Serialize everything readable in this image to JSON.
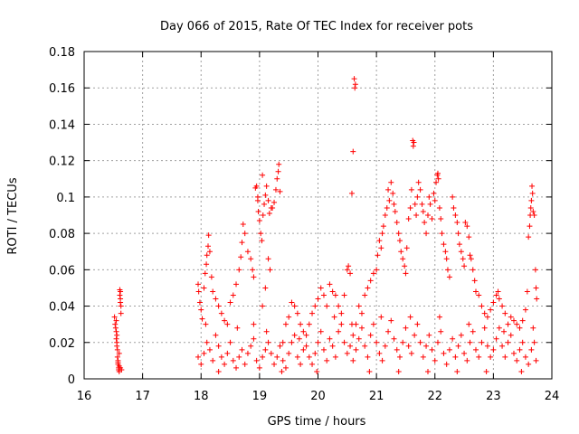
{
  "chart_data": {
    "type": "scatter",
    "title": "Day 066 of 2015, Rate Of TEC Index for receiver pots",
    "xlabel": "GPS time / hours",
    "ylabel": "ROTI / TECUs",
    "xlim": [
      16,
      24
    ],
    "ylim": [
      0,
      0.18
    ],
    "xticks": [
      "16",
      "17",
      "18",
      "19",
      "20",
      "21",
      "22",
      "23",
      "24"
    ],
    "yticks": [
      "0",
      "0.02",
      "0.04",
      "0.06",
      "0.08",
      "0.1",
      "0.12",
      "0.14",
      "0.16",
      "0.18"
    ],
    "grid": true,
    "marker": "+",
    "series_color": "#ff0000",
    "points": [
      [
        16.52,
        0.034
      ],
      [
        16.53,
        0.03
      ],
      [
        16.54,
        0.028
      ],
      [
        16.55,
        0.026
      ],
      [
        16.55,
        0.022
      ],
      [
        16.56,
        0.02
      ],
      [
        16.56,
        0.018
      ],
      [
        16.57,
        0.016
      ],
      [
        16.57,
        0.012
      ],
      [
        16.58,
        0.01
      ],
      [
        16.58,
        0.008
      ],
      [
        16.59,
        0.006
      ],
      [
        16.59,
        0.005
      ],
      [
        16.6,
        0.004
      ],
      [
        16.6,
        0.014
      ],
      [
        16.61,
        0.049
      ],
      [
        16.61,
        0.046
      ],
      [
        16.62,
        0.044
      ],
      [
        16.62,
        0.042
      ],
      [
        16.63,
        0.04
      ],
      [
        16.63,
        0.036
      ],
      [
        16.55,
        0.032
      ],
      [
        16.56,
        0.024
      ],
      [
        16.58,
        0.009
      ],
      [
        16.6,
        0.007
      ],
      [
        16.62,
        0.006
      ],
      [
        16.64,
        0.005
      ],
      [
        16.62,
        0.048
      ],
      [
        17.95,
        0.052
      ],
      [
        17.96,
        0.048
      ],
      [
        17.98,
        0.042
      ],
      [
        18.0,
        0.038
      ],
      [
        18.02,
        0.033
      ],
      [
        18.05,
        0.05
      ],
      [
        18.07,
        0.058
      ],
      [
        18.09,
        0.063
      ],
      [
        18.1,
        0.068
      ],
      [
        18.12,
        0.073
      ],
      [
        18.13,
        0.079
      ],
      [
        18.15,
        0.07
      ],
      [
        18.18,
        0.056
      ],
      [
        18.2,
        0.048
      ],
      [
        18.25,
        0.044
      ],
      [
        18.3,
        0.04
      ],
      [
        18.35,
        0.036
      ],
      [
        18.4,
        0.032
      ],
      [
        18.45,
        0.03
      ],
      [
        18.5,
        0.042
      ],
      [
        18.55,
        0.046
      ],
      [
        18.6,
        0.052
      ],
      [
        18.65,
        0.06
      ],
      [
        18.68,
        0.067
      ],
      [
        18.7,
        0.075
      ],
      [
        18.72,
        0.085
      ],
      [
        18.75,
        0.08
      ],
      [
        18.8,
        0.07
      ],
      [
        18.85,
        0.066
      ],
      [
        18.88,
        0.06
      ],
      [
        18.9,
        0.056
      ],
      [
        18.93,
        0.105
      ],
      [
        18.95,
        0.106
      ],
      [
        18.97,
        0.1
      ],
      [
        18.98,
        0.092
      ],
      [
        19.0,
        0.087
      ],
      [
        19.02,
        0.08
      ],
      [
        19.04,
        0.076
      ],
      [
        19.06,
        0.09
      ],
      [
        19.08,
        0.096
      ],
      [
        19.1,
        0.101
      ],
      [
        19.12,
        0.106
      ],
      [
        19.15,
        0.098
      ],
      [
        19.17,
        0.091
      ],
      [
        19.2,
        0.094
      ],
      [
        19.25,
        0.097
      ],
      [
        19.28,
        0.104
      ],
      [
        19.3,
        0.11
      ],
      [
        19.32,
        0.114
      ],
      [
        19.33,
        0.118
      ],
      [
        19.35,
        0.103
      ],
      [
        19.05,
        0.112
      ],
      [
        18.97,
        0.098
      ],
      [
        19.22,
        0.094
      ],
      [
        19.18,
        0.06
      ],
      [
        19.15,
        0.066
      ],
      [
        19.1,
        0.05
      ],
      [
        19.05,
        0.04
      ],
      [
        19.4,
        0.02
      ],
      [
        19.45,
        0.03
      ],
      [
        19.5,
        0.034
      ],
      [
        19.55,
        0.042
      ],
      [
        19.6,
        0.04
      ],
      [
        19.65,
        0.036
      ],
      [
        19.7,
        0.03
      ],
      [
        19.75,
        0.026
      ],
      [
        19.8,
        0.024
      ],
      [
        19.85,
        0.03
      ],
      [
        19.9,
        0.036
      ],
      [
        19.95,
        0.04
      ],
      [
        20.0,
        0.044
      ],
      [
        20.05,
        0.05
      ],
      [
        20.1,
        0.046
      ],
      [
        20.15,
        0.04
      ],
      [
        20.2,
        0.052
      ],
      [
        20.25,
        0.048
      ],
      [
        20.3,
        0.046
      ],
      [
        20.35,
        0.04
      ],
      [
        20.4,
        0.036
      ],
      [
        20.45,
        0.046
      ],
      [
        20.5,
        0.06
      ],
      [
        20.52,
        0.062
      ],
      [
        20.55,
        0.058
      ],
      [
        20.58,
        0.102
      ],
      [
        20.6,
        0.125
      ],
      [
        20.62,
        0.165
      ],
      [
        20.63,
        0.16
      ],
      [
        20.64,
        0.162
      ],
      [
        20.6,
        0.024
      ],
      [
        20.65,
        0.03
      ],
      [
        20.7,
        0.04
      ],
      [
        20.75,
        0.036
      ],
      [
        20.8,
        0.046
      ],
      [
        20.85,
        0.05
      ],
      [
        20.9,
        0.054
      ],
      [
        20.95,
        0.058
      ],
      [
        21.0,
        0.06
      ],
      [
        21.02,
        0.068
      ],
      [
        21.05,
        0.076
      ],
      [
        21.08,
        0.072
      ],
      [
        21.1,
        0.08
      ],
      [
        21.12,
        0.084
      ],
      [
        21.15,
        0.09
      ],
      [
        21.18,
        0.094
      ],
      [
        21.2,
        0.104
      ],
      [
        21.22,
        0.098
      ],
      [
        21.25,
        0.108
      ],
      [
        21.28,
        0.102
      ],
      [
        21.3,
        0.096
      ],
      [
        21.32,
        0.092
      ],
      [
        21.35,
        0.086
      ],
      [
        21.38,
        0.08
      ],
      [
        21.4,
        0.076
      ],
      [
        21.42,
        0.07
      ],
      [
        21.45,
        0.066
      ],
      [
        21.48,
        0.062
      ],
      [
        21.5,
        0.058
      ],
      [
        21.52,
        0.072
      ],
      [
        21.55,
        0.088
      ],
      [
        21.58,
        0.094
      ],
      [
        21.6,
        0.104
      ],
      [
        21.62,
        0.131
      ],
      [
        21.63,
        0.128
      ],
      [
        21.64,
        0.13
      ],
      [
        21.66,
        0.096
      ],
      [
        21.68,
        0.09
      ],
      [
        21.7,
        0.1
      ],
      [
        21.72,
        0.108
      ],
      [
        21.75,
        0.104
      ],
      [
        21.78,
        0.096
      ],
      [
        21.8,
        0.092
      ],
      [
        21.82,
        0.086
      ],
      [
        21.85,
        0.08
      ],
      [
        21.88,
        0.09
      ],
      [
        21.9,
        0.1
      ],
      [
        21.92,
        0.096
      ],
      [
        21.95,
        0.088
      ],
      [
        21.98,
        0.102
      ],
      [
        22.0,
        0.098
      ],
      [
        22.02,
        0.108
      ],
      [
        22.04,
        0.112
      ],
      [
        22.05,
        0.113
      ],
      [
        22.06,
        0.11
      ],
      [
        22.08,
        0.094
      ],
      [
        22.1,
        0.088
      ],
      [
        22.12,
        0.08
      ],
      [
        22.15,
        0.074
      ],
      [
        22.18,
        0.07
      ],
      [
        22.2,
        0.066
      ],
      [
        22.22,
        0.06
      ],
      [
        22.25,
        0.056
      ],
      [
        22.3,
        0.1
      ],
      [
        22.32,
        0.094
      ],
      [
        22.35,
        0.09
      ],
      [
        22.38,
        0.086
      ],
      [
        22.4,
        0.08
      ],
      [
        22.42,
        0.074
      ],
      [
        22.45,
        0.07
      ],
      [
        22.48,
        0.066
      ],
      [
        22.5,
        0.062
      ],
      [
        22.52,
        0.086
      ],
      [
        22.55,
        0.084
      ],
      [
        22.58,
        0.078
      ],
      [
        22.6,
        0.068
      ],
      [
        22.62,
        0.066
      ],
      [
        22.65,
        0.06
      ],
      [
        22.68,
        0.054
      ],
      [
        22.7,
        0.048
      ],
      [
        22.75,
        0.046
      ],
      [
        22.8,
        0.04
      ],
      [
        22.85,
        0.036
      ],
      [
        22.9,
        0.034
      ],
      [
        22.95,
        0.038
      ],
      [
        23.0,
        0.042
      ],
      [
        23.05,
        0.046
      ],
      [
        23.08,
        0.048
      ],
      [
        23.1,
        0.044
      ],
      [
        23.15,
        0.04
      ],
      [
        23.2,
        0.036
      ],
      [
        23.25,
        0.03
      ],
      [
        23.3,
        0.034
      ],
      [
        23.35,
        0.032
      ],
      [
        23.4,
        0.03
      ],
      [
        23.45,
        0.028
      ],
      [
        23.5,
        0.032
      ],
      [
        23.55,
        0.038
      ],
      [
        23.58,
        0.048
      ],
      [
        23.6,
        0.078
      ],
      [
        23.62,
        0.084
      ],
      [
        23.63,
        0.09
      ],
      [
        23.64,
        0.094
      ],
      [
        23.65,
        0.098
      ],
      [
        23.66,
        0.106
      ],
      [
        23.67,
        0.102
      ],
      [
        23.68,
        0.092
      ],
      [
        23.7,
        0.09
      ],
      [
        23.72,
        0.06
      ],
      [
        23.73,
        0.05
      ],
      [
        23.74,
        0.044
      ],
      [
        17.95,
        0.012
      ],
      [
        18.0,
        0.008
      ],
      [
        18.05,
        0.014
      ],
      [
        18.1,
        0.02
      ],
      [
        18.15,
        0.016
      ],
      [
        18.2,
        0.01
      ],
      [
        18.25,
        0.024
      ],
      [
        18.3,
        0.018
      ],
      [
        18.35,
        0.012
      ],
      [
        18.4,
        0.008
      ],
      [
        18.45,
        0.014
      ],
      [
        18.5,
        0.02
      ],
      [
        18.55,
        0.01
      ],
      [
        18.6,
        0.006
      ],
      [
        18.65,
        0.012
      ],
      [
        18.7,
        0.016
      ],
      [
        18.75,
        0.008
      ],
      [
        18.8,
        0.014
      ],
      [
        18.85,
        0.018
      ],
      [
        18.9,
        0.022
      ],
      [
        18.95,
        0.01
      ],
      [
        19.0,
        0.006
      ],
      [
        19.05,
        0.012
      ],
      [
        19.1,
        0.016
      ],
      [
        19.15,
        0.02
      ],
      [
        19.2,
        0.014
      ],
      [
        19.25,
        0.008
      ],
      [
        19.3,
        0.012
      ],
      [
        19.35,
        0.018
      ],
      [
        19.4,
        0.01
      ],
      [
        19.45,
        0.006
      ],
      [
        19.5,
        0.014
      ],
      [
        19.55,
        0.02
      ],
      [
        19.6,
        0.024
      ],
      [
        19.65,
        0.012
      ],
      [
        19.7,
        0.008
      ],
      [
        19.75,
        0.016
      ],
      [
        19.8,
        0.018
      ],
      [
        19.85,
        0.012
      ],
      [
        19.9,
        0.008
      ],
      [
        19.95,
        0.014
      ],
      [
        20.0,
        0.02
      ],
      [
        20.05,
        0.026
      ],
      [
        20.1,
        0.016
      ],
      [
        20.15,
        0.01
      ],
      [
        20.2,
        0.022
      ],
      [
        20.25,
        0.018
      ],
      [
        20.3,
        0.012
      ],
      [
        20.35,
        0.026
      ],
      [
        20.4,
        0.03
      ],
      [
        20.45,
        0.02
      ],
      [
        20.5,
        0.014
      ],
      [
        20.55,
        0.018
      ],
      [
        20.6,
        0.01
      ],
      [
        20.65,
        0.016
      ],
      [
        20.7,
        0.022
      ],
      [
        20.75,
        0.028
      ],
      [
        20.8,
        0.018
      ],
      [
        20.85,
        0.012
      ],
      [
        20.9,
        0.024
      ],
      [
        20.95,
        0.03
      ],
      [
        21.0,
        0.02
      ],
      [
        21.05,
        0.014
      ],
      [
        21.1,
        0.01
      ],
      [
        21.15,
        0.018
      ],
      [
        21.2,
        0.026
      ],
      [
        21.25,
        0.032
      ],
      [
        21.3,
        0.022
      ],
      [
        21.35,
        0.016
      ],
      [
        21.4,
        0.012
      ],
      [
        21.45,
        0.02
      ],
      [
        21.5,
        0.028
      ],
      [
        21.55,
        0.018
      ],
      [
        21.6,
        0.014
      ],
      [
        21.65,
        0.024
      ],
      [
        21.7,
        0.03
      ],
      [
        21.75,
        0.02
      ],
      [
        21.8,
        0.012
      ],
      [
        21.85,
        0.018
      ],
      [
        21.9,
        0.024
      ],
      [
        21.95,
        0.016
      ],
      [
        22.0,
        0.01
      ],
      [
        22.05,
        0.02
      ],
      [
        22.1,
        0.026
      ],
      [
        22.15,
        0.014
      ],
      [
        22.2,
        0.008
      ],
      [
        22.25,
        0.016
      ],
      [
        22.3,
        0.022
      ],
      [
        22.35,
        0.012
      ],
      [
        22.4,
        0.018
      ],
      [
        22.45,
        0.024
      ],
      [
        22.5,
        0.014
      ],
      [
        22.55,
        0.01
      ],
      [
        22.6,
        0.02
      ],
      [
        22.65,
        0.026
      ],
      [
        22.7,
        0.016
      ],
      [
        22.75,
        0.012
      ],
      [
        22.8,
        0.02
      ],
      [
        22.85,
        0.028
      ],
      [
        22.9,
        0.018
      ],
      [
        22.95,
        0.012
      ],
      [
        23.0,
        0.016
      ],
      [
        23.05,
        0.022
      ],
      [
        23.1,
        0.028
      ],
      [
        23.15,
        0.018
      ],
      [
        23.2,
        0.012
      ],
      [
        23.25,
        0.02
      ],
      [
        23.3,
        0.024
      ],
      [
        23.35,
        0.014
      ],
      [
        23.4,
        0.01
      ],
      [
        23.45,
        0.016
      ],
      [
        23.5,
        0.02
      ],
      [
        23.55,
        0.012
      ],
      [
        23.6,
        0.008
      ],
      [
        23.65,
        0.016
      ],
      [
        23.7,
        0.02
      ],
      [
        23.73,
        0.01
      ],
      [
        18.08,
        0.03
      ],
      [
        18.3,
        0.004
      ],
      [
        18.62,
        0.028
      ],
      [
        18.9,
        0.03
      ],
      [
        19.12,
        0.026
      ],
      [
        19.38,
        0.004
      ],
      [
        19.68,
        0.022
      ],
      [
        19.98,
        0.004
      ],
      [
        20.28,
        0.034
      ],
      [
        20.58,
        0.03
      ],
      [
        20.88,
        0.004
      ],
      [
        21.08,
        0.034
      ],
      [
        21.38,
        0.004
      ],
      [
        21.58,
        0.034
      ],
      [
        21.88,
        0.004
      ],
      [
        22.08,
        0.034
      ],
      [
        22.38,
        0.004
      ],
      [
        22.58,
        0.03
      ],
      [
        22.88,
        0.004
      ],
      [
        23.18,
        0.026
      ],
      [
        23.48,
        0.004
      ],
      [
        23.68,
        0.028
      ]
    ]
  }
}
